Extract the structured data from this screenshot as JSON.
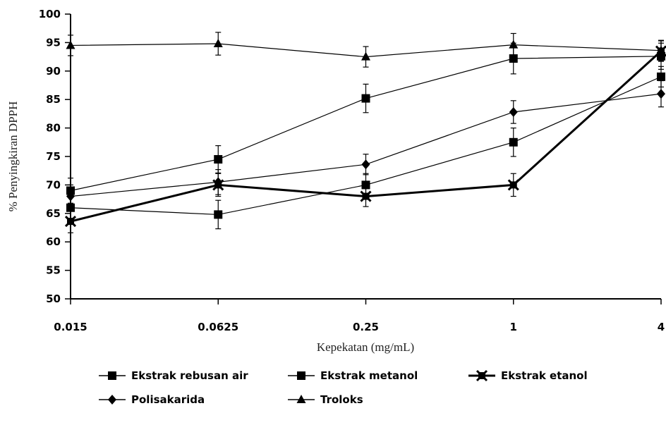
{
  "chart_data": {
    "type": "line",
    "xlabel": "Kepekatan (mg/mL)",
    "ylabel": "% Penyingkiran DPPH",
    "categories": [
      "0.015",
      "0.0625",
      "0.25",
      "1",
      "4"
    ],
    "ylim": [
      50,
      100
    ],
    "yticks": [
      50,
      55,
      60,
      65,
      70,
      75,
      80,
      85,
      90,
      95,
      100
    ],
    "grid": false,
    "legend_position": "bottom",
    "error_bars": true,
    "series": [
      {
        "name": "Ekstrak rebusan air",
        "marker": "square",
        "values": [
          69.0,
          74.5,
          85.2,
          92.2,
          92.6
        ],
        "errors": [
          2.2,
          2.4,
          2.5,
          2.7,
          2.3
        ]
      },
      {
        "name": "Ekstrak metanol",
        "marker": "square",
        "values": [
          66.0,
          64.8,
          70.0,
          77.5,
          89.0
        ],
        "errors": [
          2.2,
          2.5,
          2.0,
          2.5,
          1.8
        ]
      },
      {
        "name": "Ekstrak etanol",
        "marker": "x-square",
        "bold": true,
        "values": [
          63.6,
          70.0,
          68.0,
          70.0,
          93.5
        ],
        "errors": [
          2.0,
          2.0,
          1.8,
          2.0,
          1.8
        ]
      },
      {
        "name": "Polisakarida",
        "marker": "diamond",
        "values": [
          68.0,
          70.5,
          73.6,
          82.8,
          86.0
        ],
        "errors": [
          2.0,
          2.2,
          1.8,
          2.0,
          2.3
        ]
      },
      {
        "name": "Troloks",
        "marker": "triangle",
        "values": [
          94.5,
          94.8,
          92.5,
          94.6,
          93.6
        ],
        "errors": [
          1.8,
          2.0,
          1.8,
          2.0,
          1.8
        ]
      }
    ]
  }
}
